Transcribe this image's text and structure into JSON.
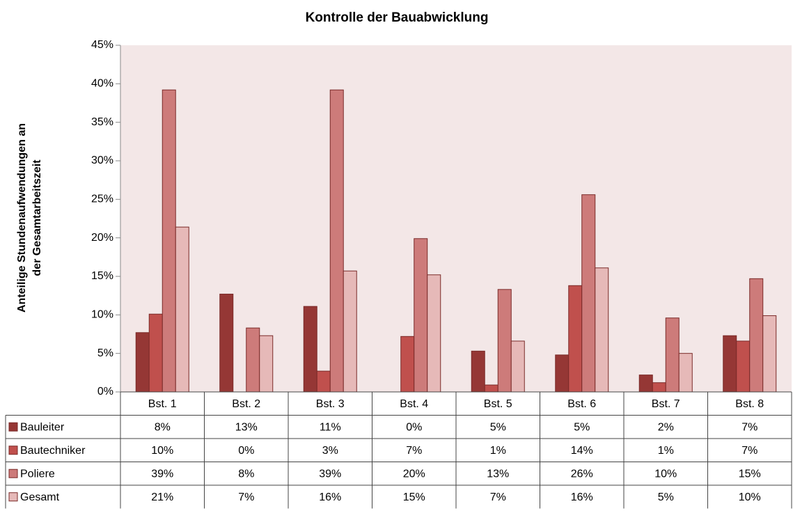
{
  "chart_data": {
    "type": "bar",
    "title": "Kontrolle der Bauabwicklung",
    "ylabel": [
      "Anteilige Stundenaufwendungen an",
      "der Gesamtarbeitszeit"
    ],
    "categories": [
      "Bst. 1",
      "Bst. 2",
      "Bst. 3",
      "Bst. 4",
      "Bst. 5",
      "Bst. 6",
      "Bst. 7",
      "Bst. 8"
    ],
    "series": [
      {
        "name": "Bauleiter",
        "color": "#953735",
        "values": [
          7.7,
          12.7,
          11.1,
          0,
          5.3,
          4.8,
          2.2,
          7.3
        ],
        "value_labels": [
          "8%",
          "13%",
          "11%",
          "0%",
          "5%",
          "5%",
          "2%",
          "7%"
        ]
      },
      {
        "name": "Bautechniker",
        "color": "#c0504d",
        "values": [
          10.1,
          0,
          2.7,
          7.2,
          0.9,
          13.8,
          1.2,
          6.6
        ],
        "value_labels": [
          "10%",
          "0%",
          "3%",
          "7%",
          "1%",
          "14%",
          "1%",
          "7%"
        ]
      },
      {
        "name": "Poliere",
        "color": "#cd7b7a",
        "values": [
          39.2,
          8.3,
          39.2,
          19.9,
          13.3,
          25.6,
          9.6,
          14.7
        ],
        "value_labels": [
          "39%",
          "8%",
          "39%",
          "20%",
          "13%",
          "26%",
          "10%",
          "15%"
        ]
      },
      {
        "name": "Gesamt",
        "color": "#e6b9b8",
        "values": [
          21.4,
          7.3,
          15.7,
          15.2,
          6.6,
          16.1,
          5.0,
          9.9
        ],
        "value_labels": [
          "21%",
          "7%",
          "16%",
          "15%",
          "7%",
          "16%",
          "5%",
          "10%"
        ]
      }
    ],
    "ylim": [
      0,
      45
    ],
    "yticks": [
      {
        "value": 0,
        "label": "0%"
      },
      {
        "value": 5,
        "label": "5%"
      },
      {
        "value": 10,
        "label": "10%"
      },
      {
        "value": 15,
        "label": "15%"
      },
      {
        "value": 20,
        "label": "20%"
      },
      {
        "value": 25,
        "label": "25%"
      },
      {
        "value": 30,
        "label": "30%"
      },
      {
        "value": 35,
        "label": "35%"
      },
      {
        "value": 40,
        "label": "40%"
      },
      {
        "value": 45,
        "label": "45%"
      }
    ],
    "grid": false,
    "plot_background": "#f3e7e7"
  }
}
